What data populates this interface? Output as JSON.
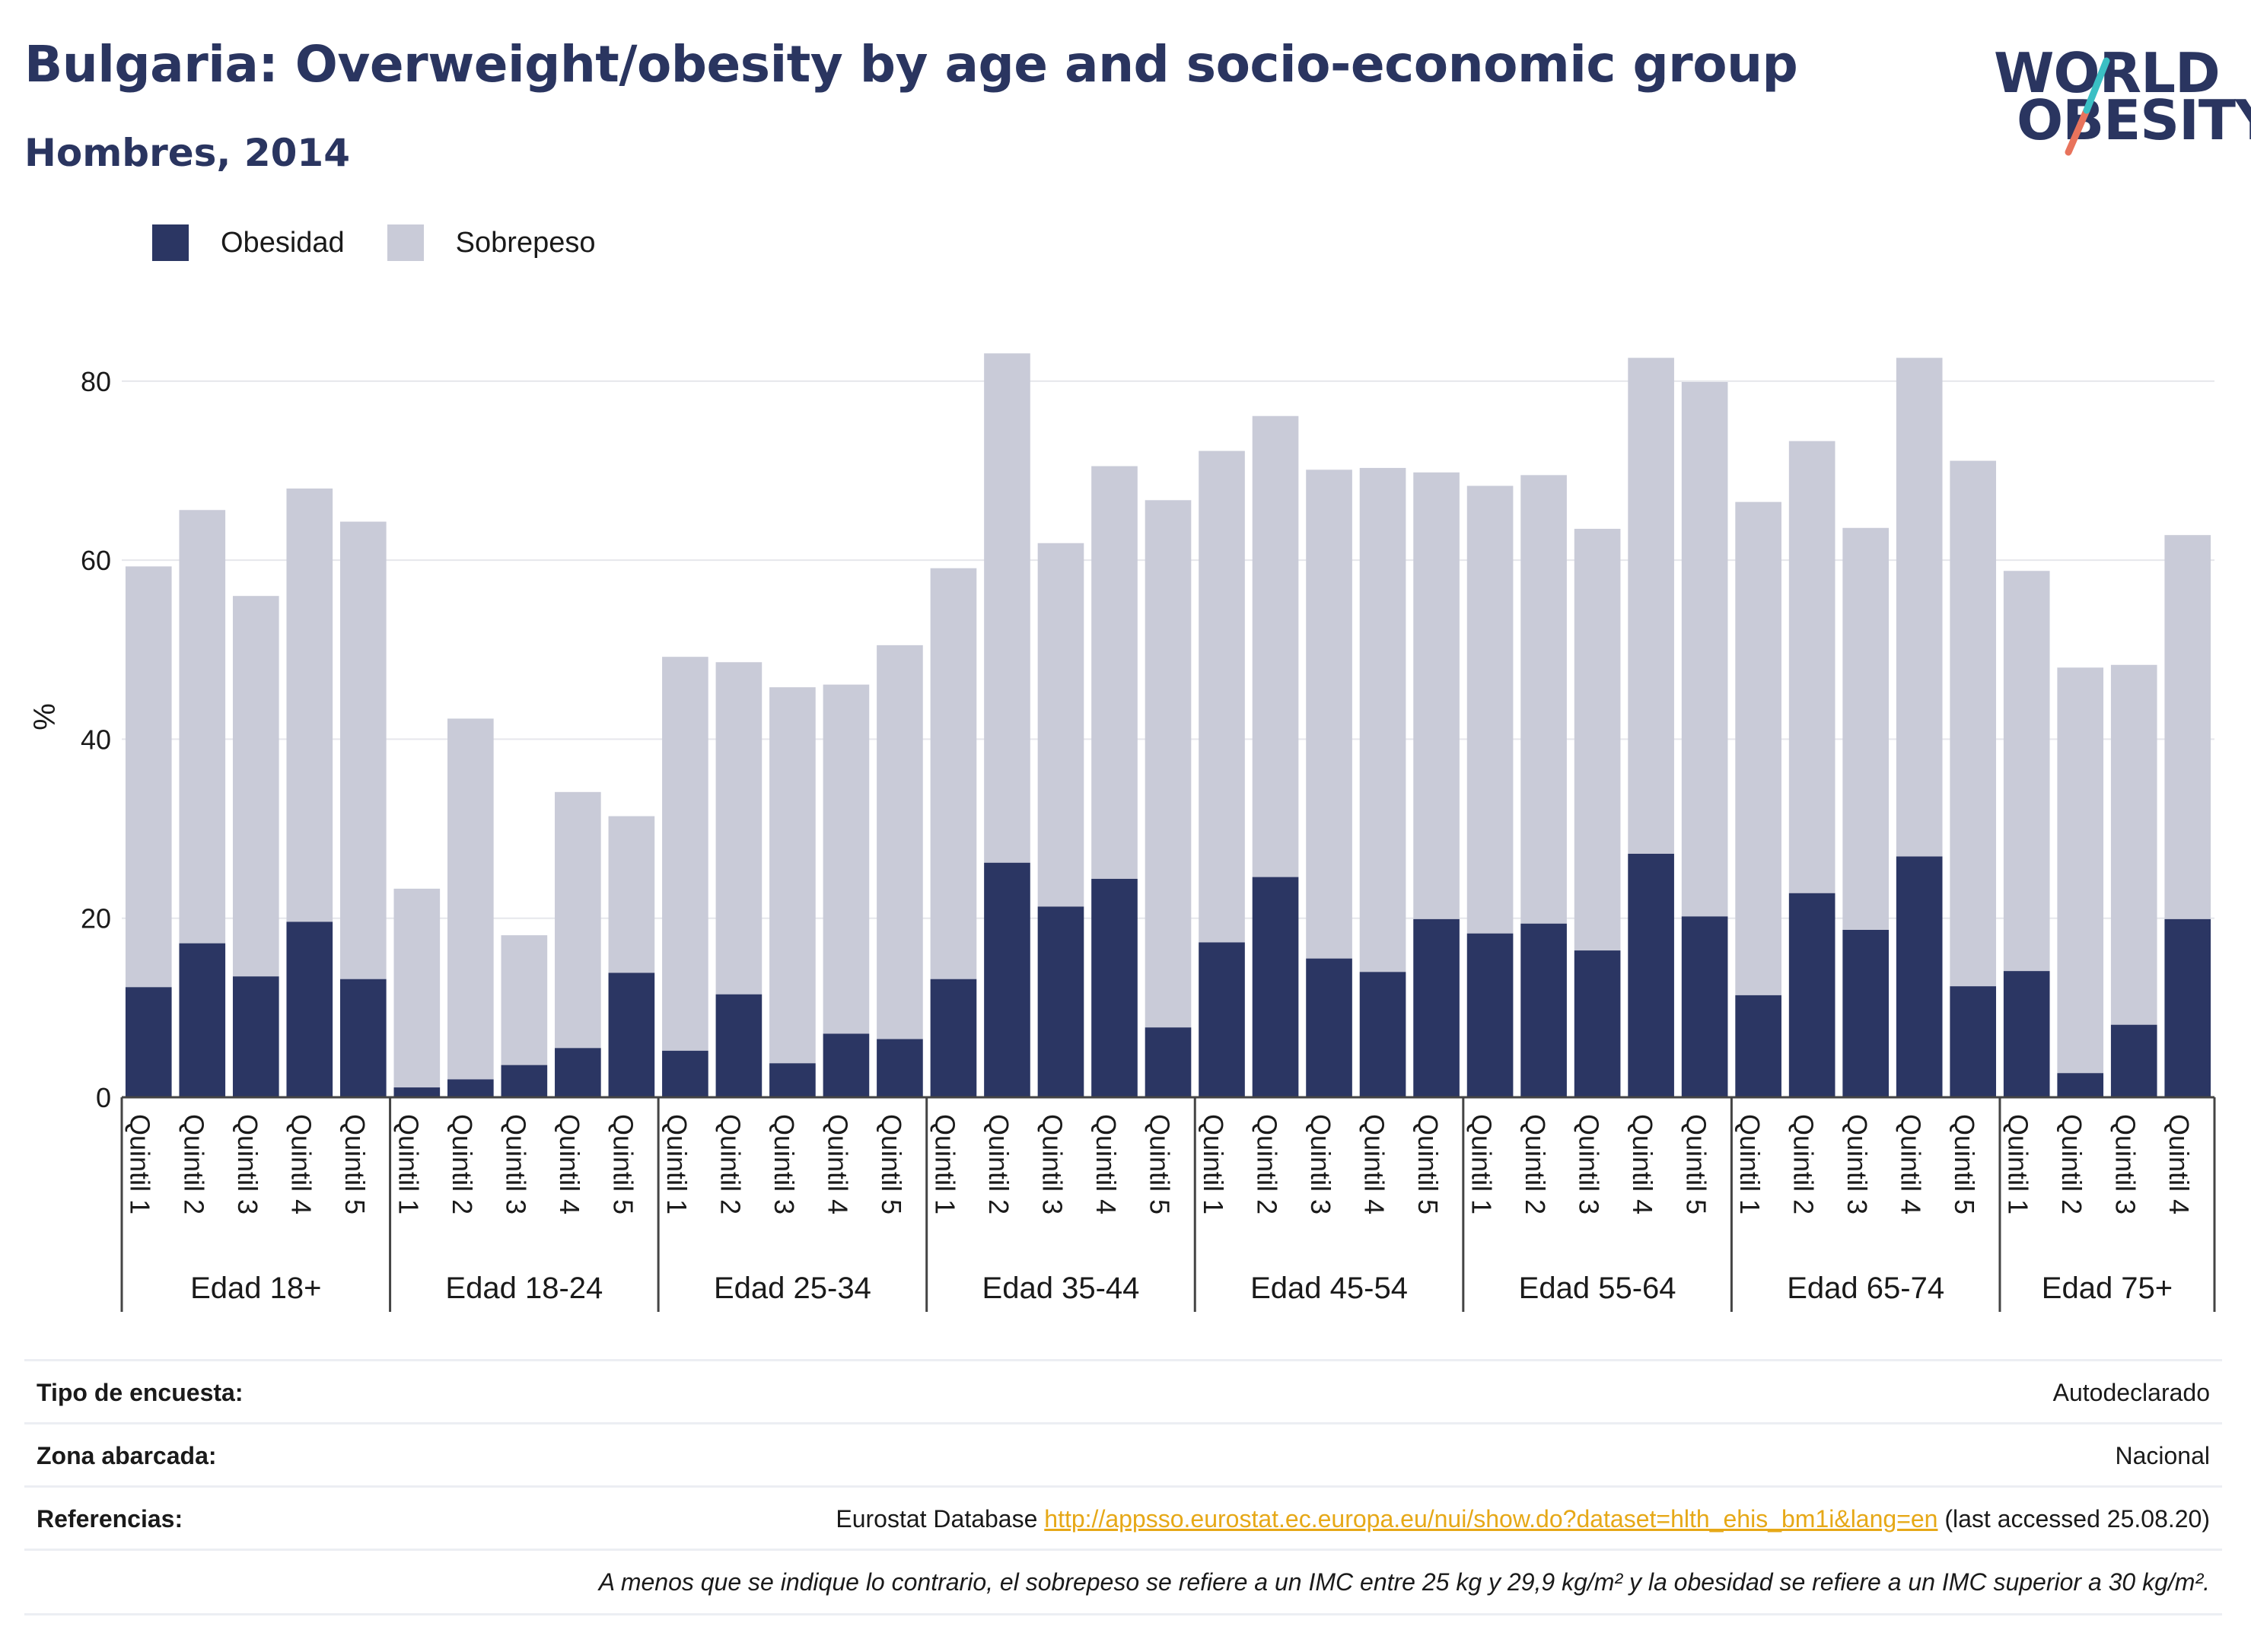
{
  "header": {
    "title": "Bulgaria: Overweight/obesity by age and socio-economic group",
    "subtitle": "Hombres, 2014",
    "logo_line1": "WORLD",
    "logo_line2": "OBESITY"
  },
  "legend": {
    "obesity_label": "Obesidad",
    "overweight_label": "Sobrepeso"
  },
  "colors": {
    "obesity": "#2b3663",
    "overweight": "#c9cbd8",
    "link": "#e6a817",
    "logo_teal": "#3bbfc4",
    "logo_coral": "#e8735c"
  },
  "chart_data": {
    "type": "bar",
    "stacked": true,
    "ylabel": "%",
    "ylim": [
      0,
      85
    ],
    "yticks": [
      0,
      20,
      40,
      60,
      80
    ],
    "grid": true,
    "legend_position": "top-left",
    "groups": [
      {
        "label": "Edad 18+",
        "categories": [
          "Quintil 1",
          "Quintil 2",
          "Quintil 3",
          "Quintil 4",
          "Quintil 5"
        ],
        "obesidad": [
          12.3,
          17.2,
          13.5,
          19.6,
          13.2
        ],
        "total": [
          59.3,
          65.6,
          56.0,
          68.0,
          64.3
        ]
      },
      {
        "label": "Edad 18-24",
        "categories": [
          "Quintil 1",
          "Quintil 2",
          "Quintil 3",
          "Quintil 4",
          "Quintil 5"
        ],
        "obesidad": [
          1.1,
          2.0,
          3.6,
          5.5,
          13.9
        ],
        "total": [
          23.3,
          42.3,
          18.1,
          34.1,
          31.4
        ]
      },
      {
        "label": "Edad 25-34",
        "categories": [
          "Quintil 1",
          "Quintil 2",
          "Quintil 3",
          "Quintil 4",
          "Quintil 5"
        ],
        "obesidad": [
          5.2,
          11.5,
          3.8,
          7.1,
          6.5
        ],
        "total": [
          49.2,
          48.6,
          45.8,
          46.1,
          50.5
        ]
      },
      {
        "label": "Edad 35-44",
        "categories": [
          "Quintil 1",
          "Quintil 2",
          "Quintil 3",
          "Quintil 4",
          "Quintil 5"
        ],
        "obesidad": [
          13.2,
          26.2,
          21.3,
          24.4,
          7.8
        ],
        "total": [
          59.1,
          83.1,
          61.9,
          70.5,
          66.7
        ]
      },
      {
        "label": "Edad 45-54",
        "categories": [
          "Quintil 1",
          "Quintil 2",
          "Quintil 3",
          "Quintil 4",
          "Quintil 5"
        ],
        "obesidad": [
          17.3,
          24.6,
          15.5,
          14.0,
          19.9
        ],
        "total": [
          72.2,
          76.1,
          70.1,
          70.3,
          69.8
        ]
      },
      {
        "label": "Edad 55-64",
        "categories": [
          "Quintil 1",
          "Quintil 2",
          "Quintil 3",
          "Quintil 4",
          "Quintil 5"
        ],
        "obesidad": [
          18.3,
          19.4,
          16.4,
          27.2,
          20.2
        ],
        "total": [
          68.3,
          69.5,
          63.5,
          82.6,
          79.9
        ]
      },
      {
        "label": "Edad 65-74",
        "categories": [
          "Quintil 1",
          "Quintil 2",
          "Quintil 3",
          "Quintil 4",
          "Quintil 5"
        ],
        "obesidad": [
          11.4,
          22.8,
          18.7,
          26.9,
          12.4
        ],
        "total": [
          66.5,
          73.3,
          63.6,
          82.6,
          71.1
        ]
      },
      {
        "label": "Edad 75+",
        "categories": [
          "Quintil 1",
          "Quintil 2",
          "Quintil 3",
          "Quintil 4"
        ],
        "obesidad": [
          14.1,
          2.7,
          8.1,
          19.9
        ],
        "total": [
          58.8,
          48.0,
          48.3,
          62.8
        ]
      }
    ]
  },
  "info": {
    "survey_type_label": "Tipo de encuesta:",
    "survey_type_value": "Autodeclarado",
    "coverage_label": "Zona abarcada:",
    "coverage_value": "Nacional",
    "references_label": "Referencias:",
    "references_prefix": "Eurostat Database ",
    "references_link": "http://appsso.eurostat.ec.europa.eu/nui/show.do?dataset=hlth_ehis_bm1i&lang=en",
    "references_suffix": " (last accessed 25.08.20)",
    "note": "A menos que se indique lo contrario, el sobrepeso se refiere a un IMC entre 25 kg y 29,9 kg/m² y la obesidad se refiere a un IMC superior a 30 kg/m²."
  }
}
